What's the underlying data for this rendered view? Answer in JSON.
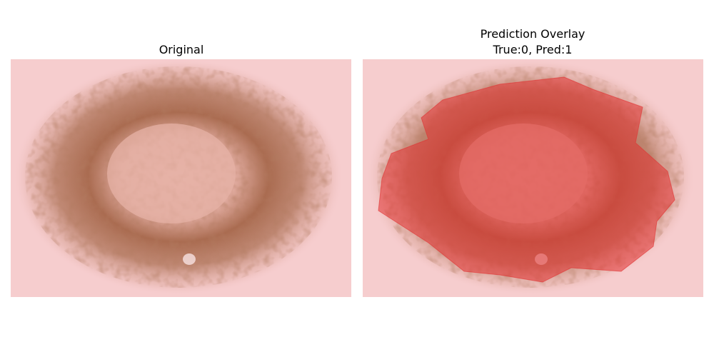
{
  "panels": [
    {
      "title_lines": [
        "Original"
      ]
    },
    {
      "title_lines": [
        "Prediction Overlay",
        "True:0, Pred:1"
      ]
    }
  ]
}
